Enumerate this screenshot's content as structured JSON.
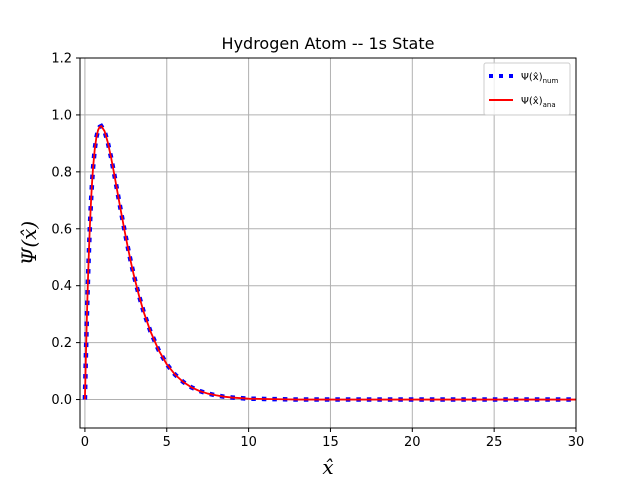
{
  "chart_data": {
    "type": "line",
    "title": "Hydrogen Atom -- 1s State",
    "xlabel": "x̂",
    "ylabel": "Ψ(x̂)",
    "xlim": [
      -0.3,
      30
    ],
    "ylim": [
      -0.1,
      1.2
    ],
    "xticks": [
      "0",
      "5",
      "10",
      "15",
      "20",
      "25",
      "30"
    ],
    "xtick_values": [
      0,
      5,
      10,
      15,
      20,
      25,
      30
    ],
    "yticks": [
      "0.0",
      "0.2",
      "0.4",
      "0.6",
      "0.8",
      "1.0",
      "1.2"
    ],
    "ytick_values": [
      0,
      0.2,
      0.4,
      0.6,
      0.8,
      1.0,
      1.2
    ],
    "grid": true,
    "legend_placement": "top-right",
    "series": [
      {
        "name": "Ψ(x̂)num",
        "legend_main": "Ψ(x̂)",
        "legend_sub": "num",
        "style": "dotted",
        "color": "#0000ff",
        "x": [
          0.0,
          0.05,
          0.1,
          0.15,
          0.2,
          0.25,
          0.3,
          0.35,
          0.4,
          0.45,
          0.5,
          0.6,
          0.7,
          0.8,
          0.9,
          1.0,
          1.2,
          1.4,
          1.6,
          1.8,
          2.0,
          2.2,
          2.4,
          2.6,
          2.8,
          3.0,
          3.3,
          3.6,
          4.0,
          4.5,
          5.0,
          5.5,
          6.0,
          6.5,
          7.0,
          7.5,
          8.0,
          8.5,
          9.0,
          10.0,
          11.0,
          12.0,
          13.0,
          14.0,
          15.0,
          16.0,
          17.0,
          18.0,
          19.0,
          20.0,
          21.0,
          22.0,
          23.0,
          24.0,
          25.0,
          26.0,
          27.0,
          28.0,
          29.0,
          30.0
        ],
        "values": [
          0.0,
          0.129,
          0.246,
          0.351,
          0.445,
          0.529,
          0.603,
          0.669,
          0.726,
          0.775,
          0.816,
          0.879,
          0.921,
          0.946,
          0.958,
          0.961,
          0.943,
          0.903,
          0.85,
          0.789,
          0.725,
          0.662,
          0.6,
          0.541,
          0.485,
          0.434,
          0.366,
          0.306,
          0.24,
          0.174,
          0.124,
          0.088,
          0.062,
          0.043,
          0.03,
          0.021,
          0.015,
          0.01,
          0.007,
          0.003,
          0.002,
          0.001,
          0.0,
          0.0,
          0.0,
          0.0,
          0.0,
          0.0,
          0.0,
          0.0,
          0.0,
          0.0,
          0.0,
          0.0,
          0.0,
          0.0,
          0.0,
          0.0,
          0.0,
          0.0
        ]
      },
      {
        "name": "Ψ(x̂)ana",
        "legend_main": "Ψ(x̂)",
        "legend_sub": "ana",
        "style": "solid",
        "color": "#ff0000",
        "x": [
          0.0,
          0.05,
          0.1,
          0.15,
          0.2,
          0.25,
          0.3,
          0.35,
          0.4,
          0.45,
          0.5,
          0.6,
          0.7,
          0.8,
          0.9,
          1.0,
          1.2,
          1.4,
          1.6,
          1.8,
          2.0,
          2.2,
          2.4,
          2.6,
          2.8,
          3.0,
          3.3,
          3.6,
          4.0,
          4.5,
          5.0,
          5.5,
          6.0,
          6.5,
          7.0,
          7.5,
          8.0,
          8.5,
          9.0,
          10.0,
          11.0,
          12.0,
          13.0,
          14.0,
          15.0,
          16.0,
          17.0,
          18.0,
          19.0,
          20.0,
          21.0,
          22.0,
          23.0,
          24.0,
          25.0,
          26.0,
          27.0,
          28.0,
          29.0,
          30.0
        ],
        "values": [
          0.0,
          0.129,
          0.246,
          0.351,
          0.445,
          0.529,
          0.603,
          0.669,
          0.726,
          0.775,
          0.816,
          0.879,
          0.921,
          0.946,
          0.958,
          0.961,
          0.943,
          0.903,
          0.85,
          0.789,
          0.725,
          0.662,
          0.6,
          0.541,
          0.485,
          0.434,
          0.366,
          0.306,
          0.24,
          0.174,
          0.124,
          0.088,
          0.062,
          0.043,
          0.03,
          0.021,
          0.015,
          0.01,
          0.007,
          0.003,
          0.002,
          0.001,
          0.0,
          0.0,
          0.0,
          0.0,
          0.0,
          0.0,
          0.0,
          0.0,
          0.0,
          0.0,
          0.0,
          0.0,
          0.0,
          0.0,
          0.0,
          0.0,
          0.0,
          0.0
        ]
      }
    ]
  }
}
